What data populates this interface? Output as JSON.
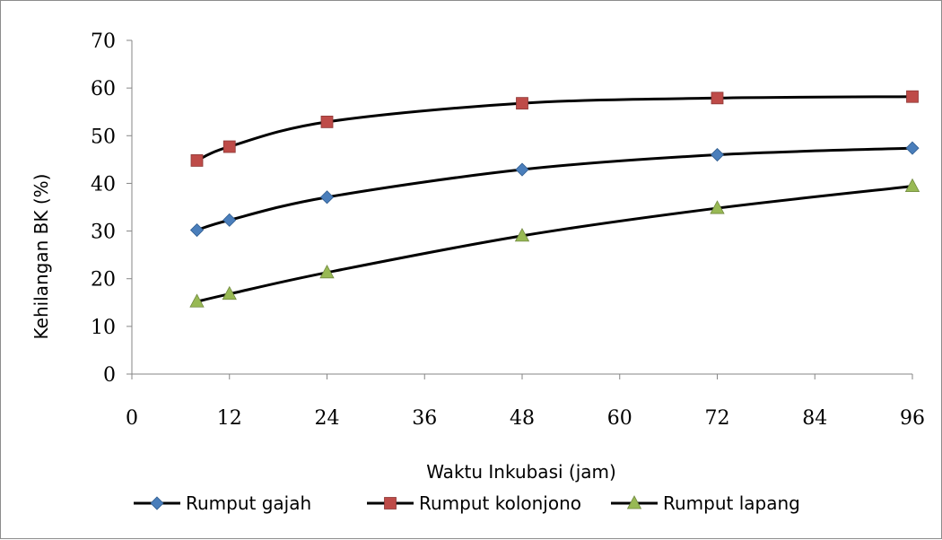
{
  "chart_data": {
    "type": "line",
    "xlabel": "Waktu Inkubasi (jam)",
    "ylabel": "Kehilangan BK (%)",
    "xlim": [
      0,
      96
    ],
    "ylim": [
      0,
      70
    ],
    "xticks": [
      0,
      12,
      24,
      36,
      48,
      60,
      72,
      84,
      96
    ],
    "yticks": [
      0,
      10,
      20,
      30,
      40,
      50,
      60,
      70
    ],
    "x": [
      8,
      12,
      24,
      48,
      72,
      96
    ],
    "legend_position": "bottom",
    "grid": false,
    "series": [
      {
        "name": "Rumput gajah",
        "values": [
          30.2,
          32.3,
          37.1,
          42.9,
          46.0,
          47.4
        ],
        "marker": "diamond",
        "marker_color": "#4a7ebb",
        "line_color": "#000000"
      },
      {
        "name": "Rumput kolonjono",
        "values": [
          44.8,
          47.7,
          52.9,
          56.8,
          57.9,
          58.2
        ],
        "marker": "square",
        "marker_color": "#be4b48",
        "line_color": "#000000"
      },
      {
        "name": "Rumput lapang",
        "values": [
          15.2,
          16.8,
          21.3,
          29.0,
          34.8,
          39.4
        ],
        "marker": "triangle",
        "marker_color": "#98b954",
        "line_color": "#000000"
      }
    ]
  }
}
